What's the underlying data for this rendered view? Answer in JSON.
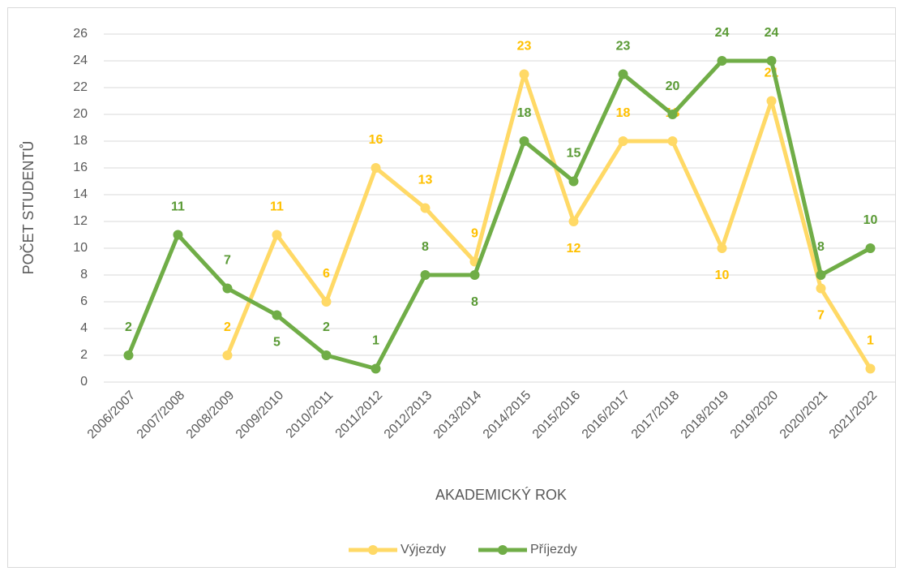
{
  "chart_data": {
    "type": "line",
    "categories": [
      "2006/2007",
      "2007/2008",
      "2008/2009",
      "2009/2010",
      "2010/2011",
      "2011/2012",
      "2012/2013",
      "2013/2014",
      "2014/2015",
      "2015/2016",
      "2016/2017",
      "2017/2018",
      "2018/2019",
      "2019/2020",
      "2020/2021",
      "2021/2022"
    ],
    "series": [
      {
        "name": "Výjezdy",
        "color": "#ffd966",
        "label_color": "#ffc000",
        "values": [
          null,
          null,
          2,
          11,
          6,
          16,
          13,
          9,
          23,
          12,
          18,
          18,
          10,
          21,
          7,
          1
        ]
      },
      {
        "name": "Příjezdy",
        "color": "#70ad47",
        "label_color": "#5a9a35",
        "values": [
          2,
          11,
          7,
          5,
          2,
          1,
          8,
          8,
          18,
          15,
          23,
          20,
          24,
          24,
          8,
          10
        ]
      }
    ],
    "ylim": [
      0,
      26
    ],
    "yticks": [
      0,
      2,
      4,
      6,
      8,
      10,
      12,
      14,
      16,
      18,
      20,
      22,
      24,
      26
    ],
    "xlabel": "AKADEMICKÝ ROK",
    "ylabel": "POČET STUDENTŮ",
    "grid": true,
    "legend": "bottom"
  }
}
